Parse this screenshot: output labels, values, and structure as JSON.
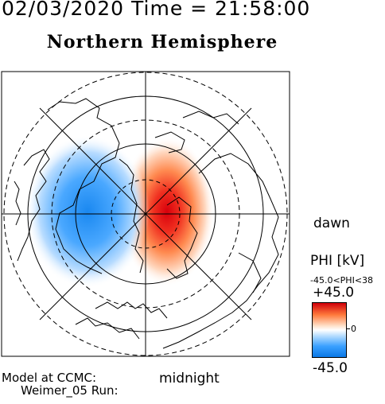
{
  "header": {
    "date_time": "02/03/2020 Time = 21:58:00"
  },
  "map": {
    "title": "Northern Hemisphere",
    "dawn_label": "dawn",
    "midnight_label": "midnight",
    "colors": {
      "positive": "#d0000a",
      "negative": "#0a78e6",
      "neutral": "#ffffff"
    }
  },
  "colorbar": {
    "title": "PHI [kV]",
    "range_text": "-45.0<PHI<38",
    "max_label": "+45.0",
    "zero_label": "0",
    "min_label": "-45.0"
  },
  "footer": {
    "model_line1": "Model at CCMC:",
    "model_line2": "Weimer_05 Run:"
  }
}
